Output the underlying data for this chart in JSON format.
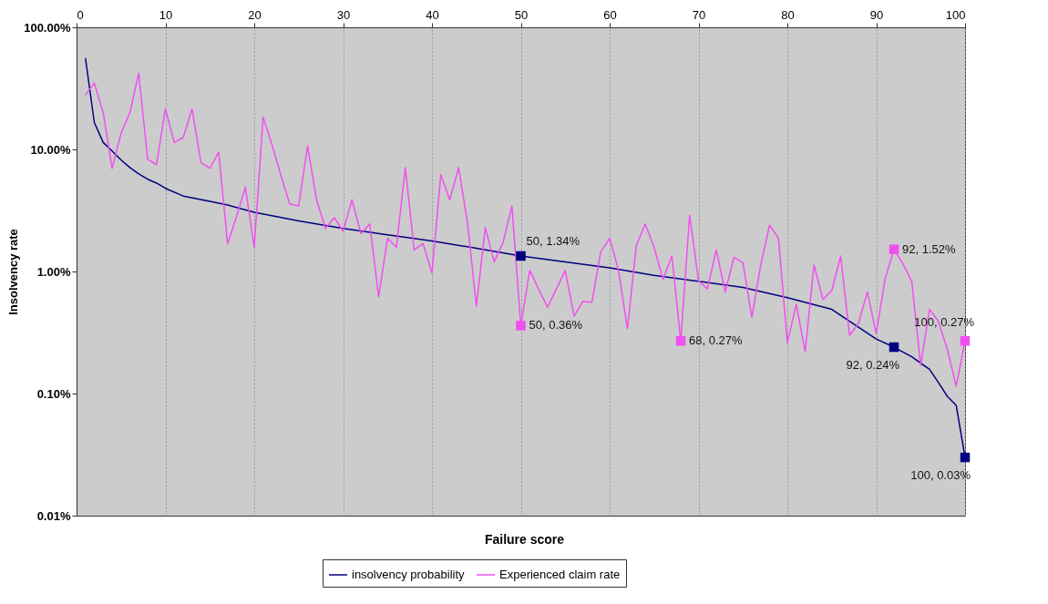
{
  "chart_data": {
    "type": "line",
    "xlabel": "Failure score",
    "ylabel": "Insolvency rate",
    "x": [
      1,
      2,
      3,
      4,
      5,
      6,
      7,
      8,
      9,
      10,
      11,
      12,
      13,
      14,
      15,
      16,
      17,
      18,
      19,
      20,
      21,
      22,
      23,
      24,
      25,
      26,
      27,
      28,
      29,
      30,
      31,
      32,
      33,
      34,
      35,
      36,
      37,
      38,
      39,
      40,
      41,
      42,
      43,
      44,
      45,
      46,
      47,
      48,
      49,
      50,
      51,
      52,
      53,
      54,
      55,
      56,
      57,
      58,
      59,
      60,
      61,
      62,
      63,
      64,
      65,
      66,
      67,
      68,
      69,
      70,
      71,
      72,
      73,
      74,
      75,
      76,
      77,
      78,
      79,
      80,
      81,
      82,
      83,
      84,
      85,
      86,
      87,
      88,
      89,
      90,
      91,
      92,
      93,
      94,
      95,
      96,
      97,
      98,
      99,
      100
    ],
    "series": [
      {
        "name": "insolvency probability",
        "color": "#000080",
        "x": [
          1,
          2,
          3,
          4,
          5,
          6,
          7,
          8,
          9,
          10,
          12,
          15,
          17,
          20,
          25,
          30,
          35,
          40,
          45,
          50,
          55,
          60,
          65,
          70,
          75,
          80,
          85,
          90,
          92,
          94,
          96,
          97,
          98,
          99,
          100
        ],
        "values": [
          56,
          16.6,
          11.4,
          9.7,
          8.2,
          7.1,
          6.3,
          5.7,
          5.3,
          4.8,
          4.15,
          3.75,
          3.5,
          3.06,
          2.6,
          2.25,
          2.0,
          1.78,
          1.55,
          1.34,
          1.2,
          1.07,
          0.93,
          0.83,
          0.74,
          0.61,
          0.49,
          0.28,
          0.24,
          0.2,
          0.158,
          0.123,
          0.095,
          0.08,
          0.03
        ],
        "value_labels": [
          null,
          null,
          null,
          null,
          null,
          null,
          null,
          null,
          null,
          null,
          null,
          null,
          null,
          null,
          null,
          null,
          null,
          null,
          null,
          "50, 1.34%",
          null,
          null,
          null,
          null,
          null,
          null,
          null,
          null,
          "92, 0.24%",
          null,
          null,
          null,
          null,
          null,
          "100, 0.03%"
        ]
      },
      {
        "name": "Experienced claim rate",
        "color": "#f050f0",
        "values": [
          28,
          35,
          20,
          7.0,
          13.5,
          20,
          42,
          8.3,
          7.5,
          21.4,
          11.4,
          12.5,
          21.4,
          7.8,
          7.0,
          9.5,
          1.69,
          2.8,
          4.9,
          1.58,
          18.4,
          10.9,
          6.1,
          3.56,
          3.44,
          10.7,
          3.9,
          2.25,
          2.76,
          2.14,
          3.87,
          2.04,
          2.45,
          0.62,
          1.87,
          1.58,
          7.1,
          1.5,
          1.69,
          0.97,
          6.2,
          3.87,
          7.1,
          2.5,
          0.52,
          2.29,
          1.2,
          1.72,
          3.44,
          0.36,
          1.02,
          0.72,
          0.51,
          0.72,
          1.02,
          0.43,
          0.57,
          0.56,
          1.45,
          1.87,
          1.02,
          0.34,
          1.63,
          2.45,
          1.58,
          0.86,
          1.34,
          0.27,
          2.9,
          0.84,
          0.72,
          1.5,
          0.68,
          1.31,
          1.18,
          0.42,
          1.13,
          2.4,
          1.87,
          0.26,
          0.54,
          0.22,
          1.13,
          0.59,
          0.7,
          1.34,
          0.3,
          0.375,
          0.68,
          0.31,
          0.87,
          1.52,
          1.16,
          0.83,
          0.17,
          0.49,
          0.39,
          0.23,
          0.115,
          0.27
        ],
        "value_labels": [
          null,
          null,
          null,
          null,
          null,
          null,
          null,
          null,
          null,
          null,
          null,
          null,
          null,
          null,
          null,
          null,
          null,
          null,
          null,
          null,
          null,
          null,
          null,
          null,
          null,
          null,
          null,
          null,
          null,
          null,
          null,
          null,
          null,
          null,
          null,
          null,
          null,
          null,
          null,
          null,
          null,
          null,
          null,
          null,
          null,
          null,
          null,
          null,
          null,
          "50, 0.36%",
          null,
          null,
          null,
          null,
          null,
          null,
          null,
          null,
          null,
          null,
          null,
          null,
          null,
          null,
          null,
          null,
          null,
          "68, 0.27%",
          null,
          null,
          null,
          null,
          null,
          null,
          null,
          null,
          null,
          null,
          null,
          null,
          null,
          null,
          null,
          null,
          null,
          null,
          null,
          null,
          null,
          null,
          null,
          "92, 1.52%",
          null,
          null,
          null,
          null,
          null,
          null,
          null,
          "100, 0.27%"
        ]
      }
    ],
    "xlim": [
      0,
      100
    ],
    "xticks": [
      0,
      10,
      20,
      30,
      40,
      50,
      60,
      70,
      80,
      90,
      100
    ],
    "ylim": [
      0.01,
      100
    ],
    "yticks": [
      {
        "value": 100,
        "label": "100.00%"
      },
      {
        "value": 10,
        "label": "10.00%"
      },
      {
        "value": 1,
        "label": "1.00%"
      },
      {
        "value": 0.1,
        "label": "0.10%"
      },
      {
        "value": 0.01,
        "label": "0.01%"
      }
    ],
    "log": "y",
    "grid": "x",
    "legend": "bottom"
  }
}
